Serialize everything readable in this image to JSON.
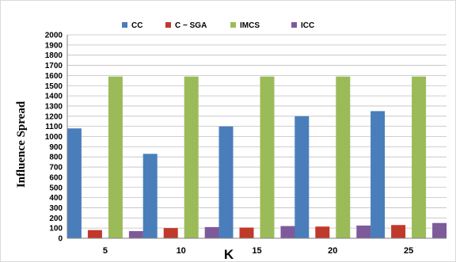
{
  "chart_data": {
    "type": "bar",
    "title": "",
    "xlabel": "K",
    "ylabel": "Influence Spread",
    "categories": [
      "5",
      "10",
      "15",
      "20",
      "25"
    ],
    "ylim": [
      0,
      2000
    ],
    "ytick_step": 100,
    "grid": true,
    "legend_position": "top",
    "series": [
      {
        "name": "CC",
        "color": "#4a7ebb",
        "values": [
          1080,
          830,
          1100,
          1200,
          1250
        ]
      },
      {
        "name": "C − SGA",
        "color": "#c0392b",
        "values": [
          80,
          100,
          105,
          115,
          130
        ]
      },
      {
        "name": "IMCS",
        "color": "#9bbb59",
        "values": [
          1590,
          1590,
          1590,
          1590,
          1590
        ]
      },
      {
        "name": "ICC",
        "color": "#7e5a9b",
        "values": [
          70,
          110,
          120,
          125,
          150
        ]
      }
    ]
  }
}
